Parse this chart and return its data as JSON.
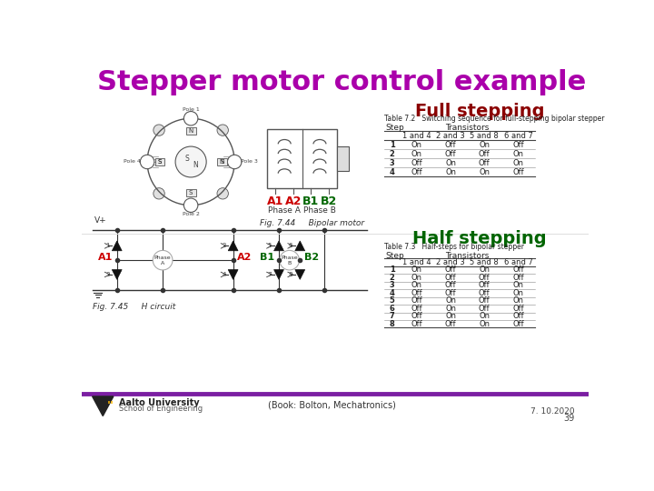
{
  "title": "Stepper motor control example",
  "title_color": "#AA00AA",
  "title_fontsize": 22,
  "bg_color": "#FFFFFF",
  "full_stepping_label": "Full stepping",
  "full_stepping_color": "#8B0000",
  "half_stepping_label": "Half stepping",
  "half_stepping_color": "#006400",
  "section_label_fontsize": 14,
  "A1_color": "#CC0000",
  "A2_color": "#CC0000",
  "B1_color": "#006600",
  "B2_color": "#006600",
  "footer_book": "(Book: Bolton, Mechatronics)",
  "footer_date": "7. 10.2020",
  "footer_page": "39",
  "aalto_bar_color": "#7B1FA2",
  "table1_title": "Table 7.2   Switching sequence for full-stepping bipolar stepper",
  "table2_title": "Table 7.3   Half-steps for bipolar stepper",
  "table_headers": [
    "Step",
    "1 and 4",
    "2 and 3",
    "5 and 8",
    "6 and 7"
  ],
  "table_transistors_header": "Transistors",
  "table1_data": [
    [
      "1",
      "On",
      "Off",
      "On",
      "Off"
    ],
    [
      "2",
      "On",
      "Off",
      "Off",
      "On"
    ],
    [
      "3",
      "Off",
      "On",
      "Off",
      "On"
    ],
    [
      "4",
      "Off",
      "On",
      "On",
      "Off"
    ]
  ],
  "table2_data": [
    [
      "1",
      "On",
      "Off",
      "On",
      "Off"
    ],
    [
      "2",
      "On",
      "Off",
      "Off",
      "Off"
    ],
    [
      "3",
      "On",
      "Off",
      "Off",
      "On"
    ],
    [
      "4",
      "Off",
      "Off",
      "Off",
      "On"
    ],
    [
      "5",
      "Off",
      "On",
      "Off",
      "On"
    ],
    [
      "6",
      "Off",
      "On",
      "Off",
      "Off"
    ],
    [
      "7",
      "Off",
      "On",
      "On",
      "Off"
    ],
    [
      "8",
      "Off",
      "Off",
      "On",
      "Off"
    ]
  ],
  "fig744_caption": "Fig. 7.44     Bipolar motor",
  "fig745_caption": "Fig. 7.45     H circuit",
  "vplus_label": "V+",
  "phase_a_label": "Phase\nA",
  "phase_b_label": "Phase\nB",
  "phase_a_label2": "Phase A",
  "phase_b_label2": "Phase B",
  "aalto_name": "Aalto University",
  "aalto_school": "School of Engineering"
}
